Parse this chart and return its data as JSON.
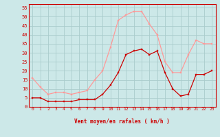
{
  "hours": [
    0,
    1,
    2,
    3,
    4,
    5,
    6,
    7,
    8,
    9,
    10,
    11,
    12,
    13,
    14,
    15,
    16,
    17,
    18,
    19,
    20,
    21,
    22,
    23
  ],
  "wind_avg": [
    5,
    5,
    3,
    3,
    3,
    3,
    4,
    4,
    4,
    7,
    12,
    19,
    29,
    31,
    32,
    29,
    31,
    19,
    10,
    6,
    7,
    18,
    18,
    20
  ],
  "wind_gust": [
    16,
    11,
    7,
    8,
    8,
    7,
    8,
    9,
    15,
    20,
    33,
    48,
    51,
    53,
    53,
    46,
    40,
    25,
    19,
    19,
    29,
    37,
    35,
    35
  ],
  "bg_color": "#cce8e8",
  "grid_color": "#aacccc",
  "avg_color": "#cc0000",
  "gust_color": "#ff9999",
  "xlabel": "Vent moyen/en rafales ( km/h )",
  "ylabel_ticks": [
    0,
    5,
    10,
    15,
    20,
    25,
    30,
    35,
    40,
    45,
    50,
    55
  ],
  "ylim": [
    0,
    57
  ],
  "xlim": [
    -0.5,
    23.5
  ],
  "directions": [
    "↑",
    "↑",
    "↗",
    "↗",
    "↗",
    "↗",
    "↗",
    "↑",
    "↗",
    "↑",
    "↑",
    "↑",
    "↑",
    "↑",
    "↑",
    "↑",
    "↗",
    "↖",
    "←",
    "↙",
    "↓",
    "↓",
    "↓",
    "↓"
  ]
}
